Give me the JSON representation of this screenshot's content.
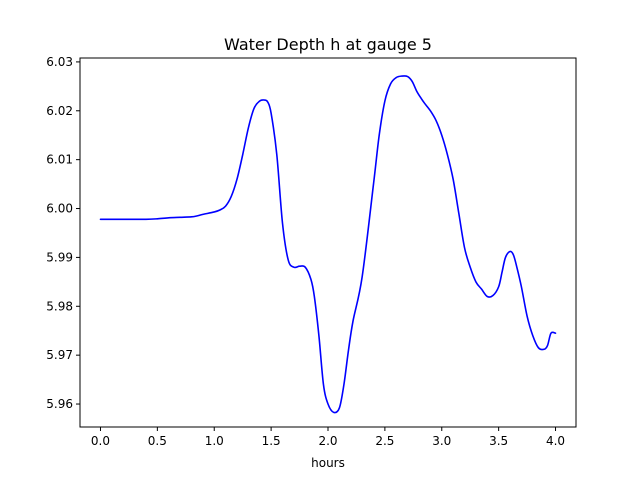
{
  "chart_data": {
    "type": "line",
    "title": "Water Depth h at gauge 5",
    "xlabel": "hours",
    "ylabel": "",
    "xlim": [
      -0.18,
      4.18
    ],
    "ylim": [
      5.9553,
      6.0308
    ],
    "xticks": [
      0.0,
      0.5,
      1.0,
      1.5,
      2.0,
      2.5,
      3.0,
      3.5,
      4.0
    ],
    "xtick_labels": [
      "0.0",
      "0.5",
      "1.0",
      "1.5",
      "2.0",
      "2.5",
      "3.0",
      "3.5",
      "4.0"
    ],
    "yticks": [
      5.96,
      5.97,
      5.98,
      5.99,
      6.0,
      6.01,
      6.02,
      6.03
    ],
    "ytick_labels": [
      "5.96",
      "5.97",
      "5.98",
      "5.99",
      "6.00",
      "6.01",
      "6.02",
      "6.03"
    ],
    "grid": false,
    "series": [
      {
        "color": "#0000ff",
        "x": [
          0.0,
          0.2,
          0.4,
          0.5,
          0.6,
          0.7,
          0.8,
          0.85,
          0.9,
          1.0,
          1.05,
          1.1,
          1.15,
          1.2,
          1.25,
          1.3,
          1.35,
          1.4,
          1.44,
          1.47,
          1.5,
          1.55,
          1.6,
          1.65,
          1.7,
          1.75,
          1.8,
          1.85,
          1.88,
          1.92,
          1.96,
          2.0,
          2.05,
          2.1,
          2.14,
          2.18,
          2.22,
          2.3,
          2.4,
          2.45,
          2.5,
          2.55,
          2.6,
          2.65,
          2.7,
          2.74,
          2.78,
          2.82,
          2.85,
          2.9,
          2.95,
          3.0,
          3.05,
          3.1,
          3.15,
          3.2,
          3.25,
          3.3,
          3.35,
          3.4,
          3.45,
          3.5,
          3.53,
          3.56,
          3.6,
          3.63,
          3.66,
          3.7,
          3.75,
          3.8,
          3.85,
          3.9,
          3.93,
          3.96,
          4.0
        ],
        "y": [
          5.9978,
          5.9978,
          5.9978,
          5.9979,
          5.9981,
          5.9982,
          5.9983,
          5.9985,
          5.9988,
          5.9993,
          5.9997,
          6.0005,
          6.0025,
          6.006,
          6.011,
          6.0165,
          6.0205,
          6.022,
          6.0222,
          6.0218,
          6.0195,
          6.011,
          5.997,
          5.9895,
          5.988,
          5.9882,
          5.988,
          5.9855,
          5.982,
          5.974,
          5.964,
          5.96,
          5.9583,
          5.9592,
          5.964,
          5.971,
          5.977,
          5.986,
          6.005,
          6.015,
          6.022,
          6.0255,
          6.0268,
          6.0271,
          6.027,
          6.026,
          6.024,
          6.0225,
          6.0215,
          6.02,
          6.018,
          6.015,
          6.011,
          6.006,
          5.999,
          5.992,
          5.988,
          5.985,
          5.9835,
          5.982,
          5.9822,
          5.984,
          5.987,
          5.99,
          5.9912,
          5.9905,
          5.988,
          5.984,
          5.978,
          5.974,
          5.9715,
          5.9712,
          5.972,
          5.9745,
          5.9745
        ]
      }
    ]
  }
}
